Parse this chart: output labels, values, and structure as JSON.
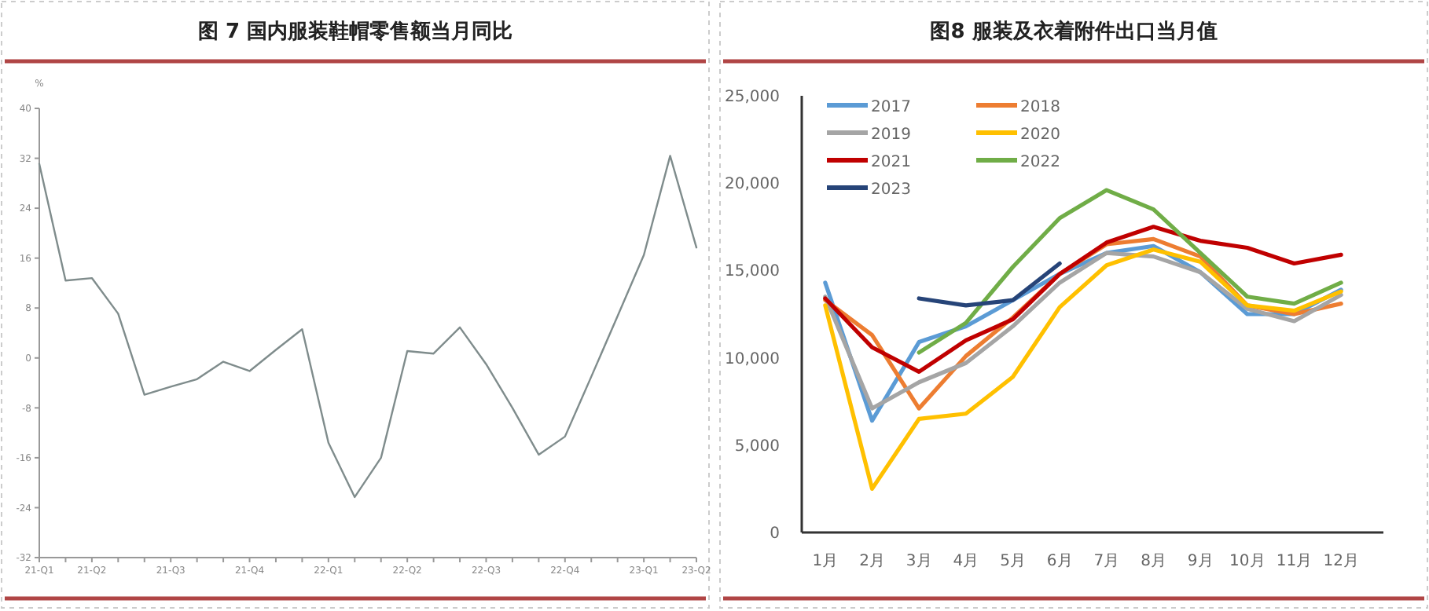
{
  "chart_data": [
    {
      "type": "line",
      "title": "图 7 国内服装鞋帽零售额当月同比",
      "ylabel": "%",
      "categories": [
        "21-Q1",
        null,
        "21-Q2",
        null,
        null,
        "21-Q3",
        null,
        null,
        "21-Q4",
        null,
        null,
        "22-Q1",
        null,
        null,
        "22-Q2",
        null,
        null,
        "22-Q3",
        null,
        null,
        "22-Q4",
        null,
        null,
        "23-Q1",
        null,
        "23-Q2"
      ],
      "series": [
        {
          "color": "#7f8c8c",
          "values": [
            31.1,
            12.4,
            12.8,
            7.1,
            -5.9,
            -4.6,
            -3.4,
            -0.6,
            -2.1,
            1.3,
            4.6,
            -13.6,
            -22.3,
            -16,
            1.1,
            0.7,
            4.9,
            -1,
            -8,
            -15.5,
            -12.6,
            -3,
            6.7,
            16.5,
            32.4,
            17.7
          ]
        }
      ],
      "ylim": [
        -32,
        40
      ],
      "yticks": [
        40,
        32,
        24,
        16,
        8,
        0,
        -8,
        -16,
        -24,
        -32
      ],
      "grid": false,
      "legend": false
    },
    {
      "type": "line",
      "title": "图8 服装及衣着附件出口当月值",
      "categories": [
        "1月",
        "2月",
        "3月",
        "4月",
        "5月",
        "6月",
        "7月",
        "8月",
        "9月",
        "10月",
        "11月",
        "12月"
      ],
      "series": [
        {
          "name": "2017",
          "color": "#5b9bd5",
          "values": [
            14300,
            6400,
            10900,
            11800,
            13300,
            14800,
            16000,
            16400,
            14900,
            12500,
            12500,
            13900
          ]
        },
        {
          "name": "2018",
          "color": "#ed7d31",
          "values": [
            13300,
            11300,
            7100,
            10100,
            12300,
            14800,
            16500,
            16800,
            15800,
            13000,
            12500,
            13100
          ]
        },
        {
          "name": "2019",
          "color": "#a5a5a5",
          "values": [
            13500,
            7100,
            8600,
            9700,
            11800,
            14300,
            16000,
            15800,
            14900,
            12800,
            12100,
            13600
          ]
        },
        {
          "name": "2020",
          "color": "#ffc000",
          "values": [
            13000,
            2500,
            6500,
            6800,
            8900,
            12900,
            15300,
            16200,
            15500,
            13000,
            12700,
            13800
          ]
        },
        {
          "name": "2021",
          "color": "#c00000",
          "values": [
            13400,
            10600,
            9200,
            11000,
            12200,
            14800,
            16600,
            17500,
            16700,
            16300,
            15400,
            15900
          ]
        },
        {
          "name": "2022",
          "color": "#70ad47",
          "values": [
            null,
            null,
            10300,
            12000,
            15200,
            18000,
            19600,
            18500,
            16000,
            13500,
            13100,
            14300
          ]
        },
        {
          "name": "2023",
          "color": "#264478",
          "values": [
            null,
            null,
            13400,
            13000,
            13300,
            15400,
            null,
            null,
            null,
            null,
            null,
            null
          ]
        }
      ],
      "ylim": [
        0,
        25000
      ],
      "yticks": [
        {
          "value": 0,
          "label": "0"
        },
        {
          "value": 5000,
          "label": "5,000"
        },
        {
          "value": 10000,
          "label": "10,000"
        },
        {
          "value": 15000,
          "label": "15,000"
        },
        {
          "value": 20000,
          "label": "20,000"
        },
        {
          "value": 25000,
          "label": "25,000"
        }
      ],
      "grid": false,
      "legend": "top left"
    }
  ]
}
